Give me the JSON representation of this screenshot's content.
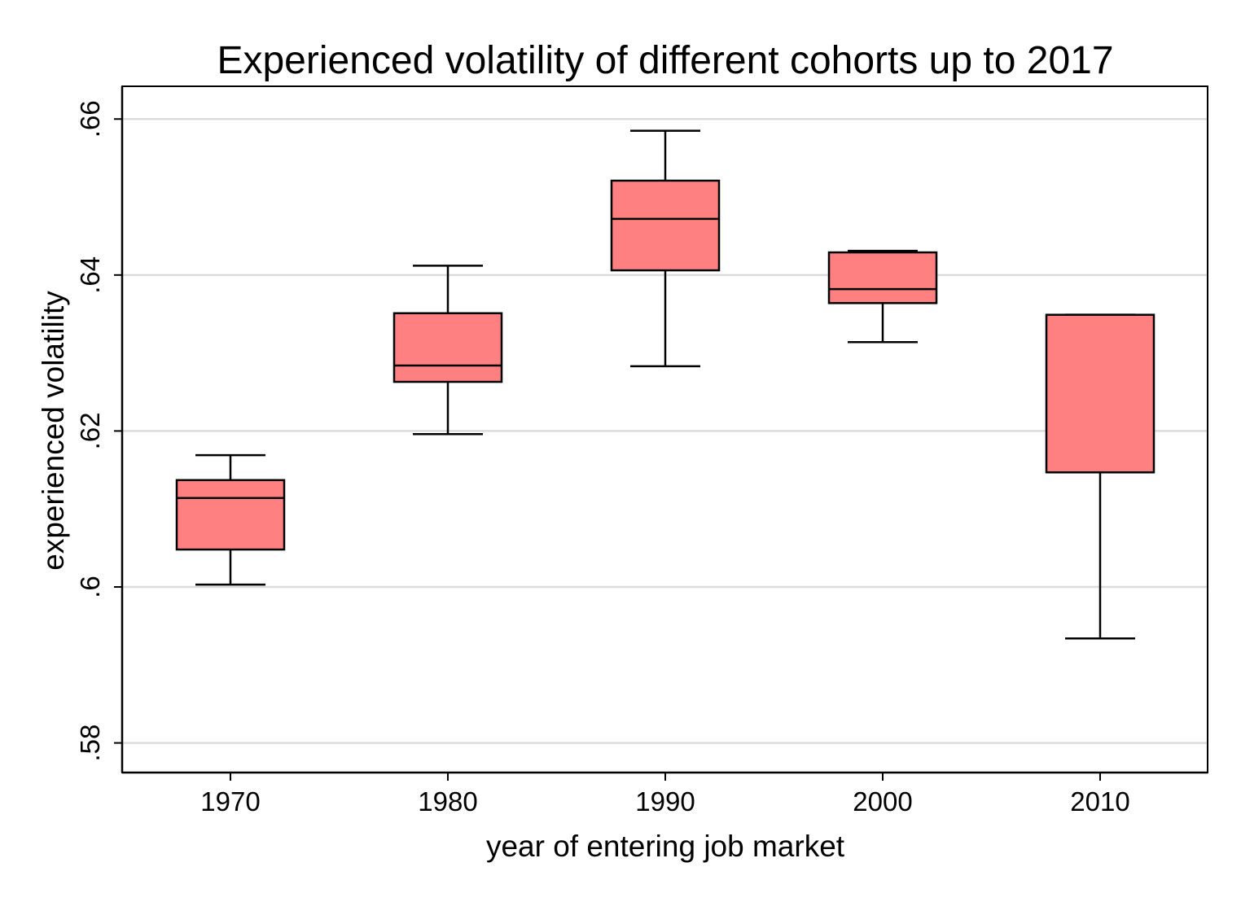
{
  "chart_data": {
    "type": "box",
    "title": "Experienced volatility of different cohorts up to 2017",
    "xlabel": "year of entering job market",
    "ylabel": "experienced volatility",
    "categories": [
      "1970",
      "1980",
      "1990",
      "2000",
      "2010"
    ],
    "y_ticks": [
      0.58,
      0.6,
      0.62,
      0.64,
      0.66
    ],
    "y_tick_labels": [
      ".58",
      ".6",
      ".62",
      ".64",
      ".66"
    ],
    "ylim": [
      0.5762,
      0.6642
    ],
    "grid": true,
    "box_color": "#ff8080",
    "boxes": [
      {
        "category": "1970",
        "whisker_low": 0.6003,
        "q1": 0.6048,
        "median": 0.6114,
        "q3": 0.6137,
        "whisker_high": 0.6169
      },
      {
        "category": "1980",
        "whisker_low": 0.6196,
        "q1": 0.6263,
        "median": 0.6284,
        "q3": 0.6351,
        "whisker_high": 0.6412
      },
      {
        "category": "1990",
        "whisker_low": 0.6283,
        "q1": 0.6406,
        "median": 0.6472,
        "q3": 0.6521,
        "whisker_high": 0.6585
      },
      {
        "category": "2000",
        "whisker_low": 0.6314,
        "q1": 0.6364,
        "median": 0.6382,
        "q3": 0.6429,
        "whisker_high": 0.6431
      },
      {
        "category": "2010",
        "whisker_low": 0.5934,
        "q1": 0.6147,
        "median": 0.6147,
        "q3": 0.6349,
        "whisker_high": 0.6349
      }
    ]
  }
}
